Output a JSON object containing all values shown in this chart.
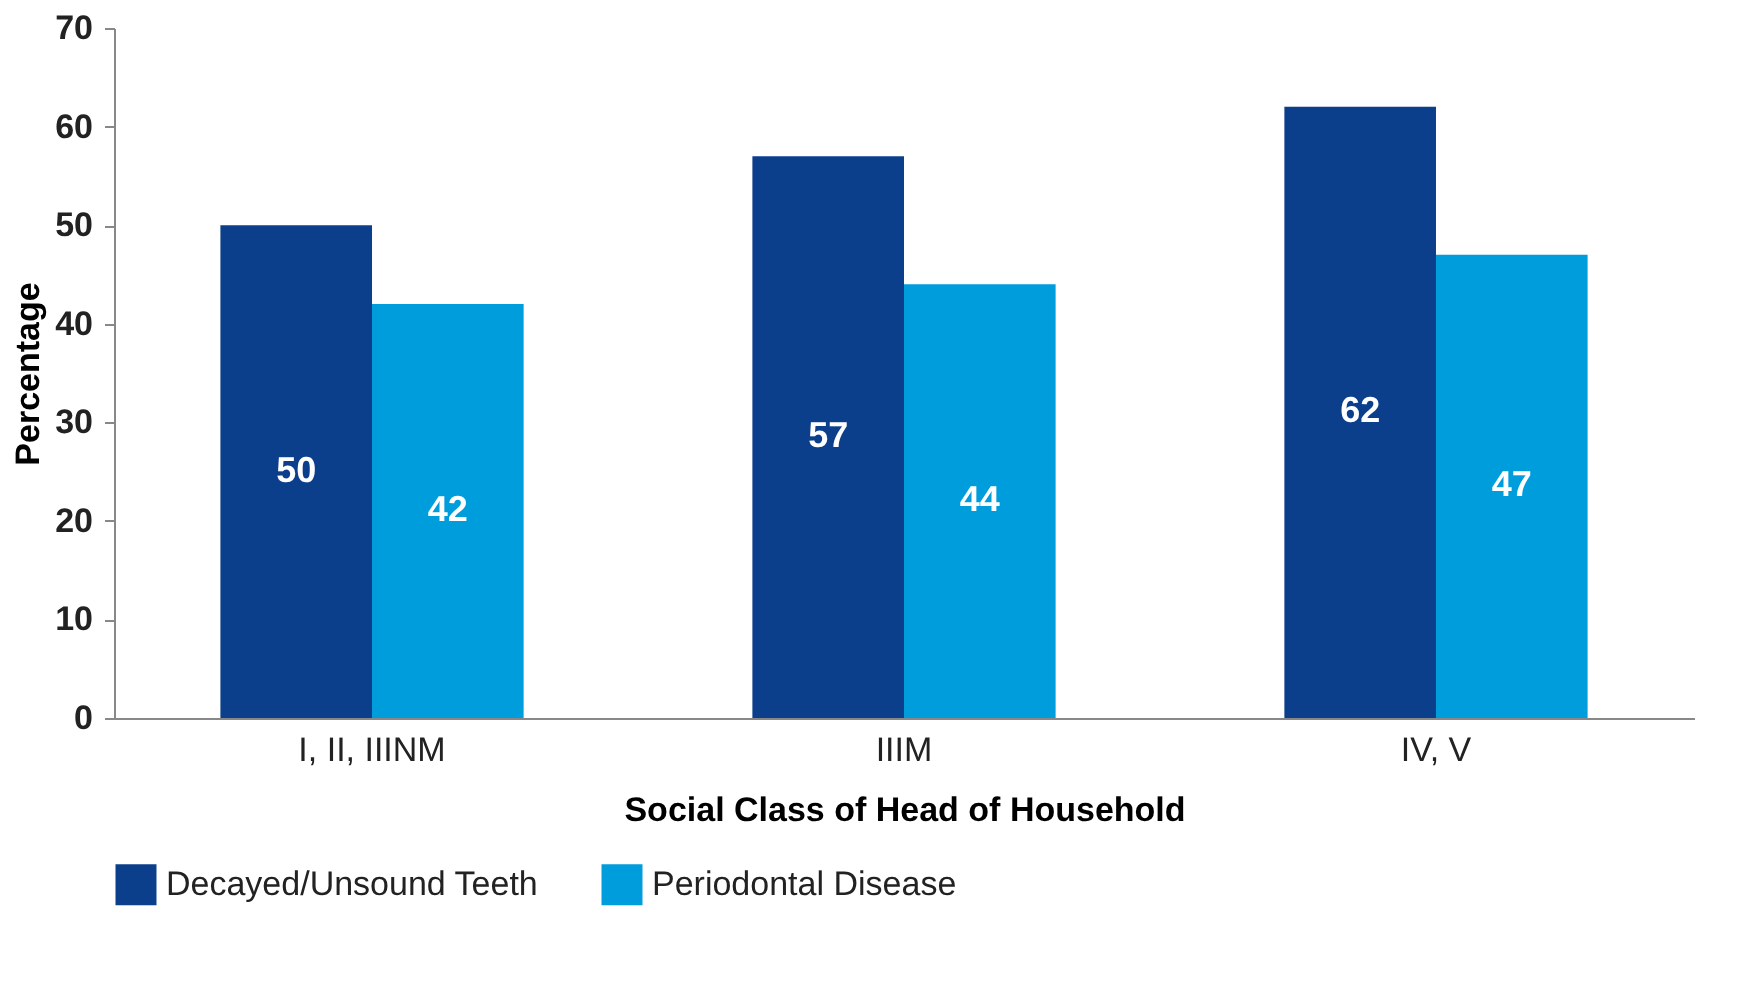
{
  "chart_data": {
    "type": "bar",
    "xlabel": "Social Class of Head of Household",
    "ylabel": "Percentage",
    "categories": [
      "I, II, IIINM",
      "IIIM",
      "IV, V"
    ],
    "series": [
      {
        "name": "Decayed/Unsound Teeth",
        "color": "#0b3f8c",
        "values": [
          50,
          57,
          62
        ]
      },
      {
        "name": "Periodontal Disease",
        "color": "#009ddc",
        "values": [
          42,
          44,
          47
        ]
      }
    ],
    "ylim": [
      0,
      70
    ],
    "yticks": [
      0,
      10,
      20,
      30,
      40,
      50,
      60,
      70
    ],
    "grid": false,
    "legend": "bottom",
    "data_labels": true
  }
}
